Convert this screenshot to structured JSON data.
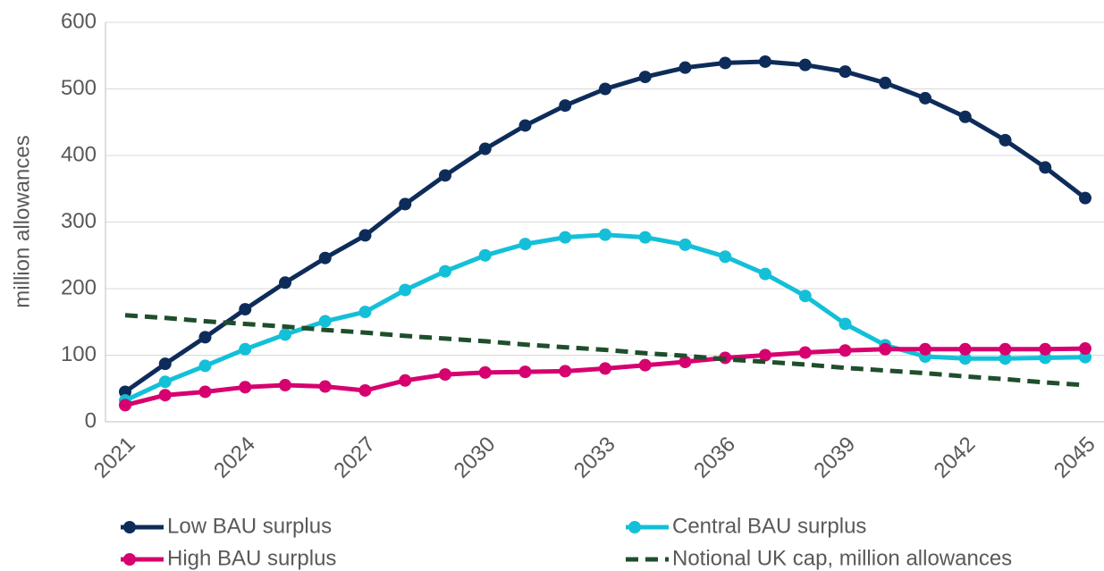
{
  "chart_data": {
    "type": "line",
    "y_label": "million allowances",
    "categories": [
      "2021",
      null,
      null,
      "2024",
      null,
      null,
      "2027",
      null,
      null,
      "2030",
      null,
      null,
      "2033",
      null,
      null,
      "2036",
      null,
      null,
      "2039",
      null,
      null,
      "2042",
      null,
      null,
      "2045"
    ],
    "series": [
      {
        "name": "Low BAU surplus",
        "color": "#0e2c5a",
        "marker": true,
        "dashed": false,
        "values": [
          45,
          87,
          127,
          169,
          209,
          246,
          280,
          327,
          370,
          410,
          445,
          475,
          500,
          518,
          532,
          539,
          541,
          536,
          526,
          509,
          486,
          458,
          423,
          382,
          336
        ]
      },
      {
        "name": "Central BAU surplus",
        "color": "#13c0d8",
        "marker": true,
        "dashed": false,
        "values": [
          32,
          60,
          84,
          109,
          131,
          151,
          165,
          198,
          226,
          250,
          267,
          277,
          281,
          277,
          266,
          248,
          222,
          189,
          147,
          115,
          98,
          95,
          95,
          96,
          97
        ]
      },
      {
        "name": "High BAU surplus",
        "color": "#d6006f",
        "marker": true,
        "dashed": false,
        "values": [
          25,
          40,
          45,
          52,
          55,
          53,
          47,
          62,
          71,
          74,
          75,
          76,
          80,
          85,
          90,
          96,
          100,
          104,
          107,
          109,
          109,
          109,
          109,
          109,
          110
        ]
      },
      {
        "name": "Notional UK cap, million allowances",
        "color": "#1f4e2c",
        "marker": false,
        "dashed": true,
        "values": [
          160,
          156,
          151,
          147,
          143,
          138,
          134,
          129,
          125,
          121,
          116,
          112,
          108,
          103,
          99,
          94,
          90,
          86,
          81,
          77,
          73,
          68,
          64,
          59,
          55
        ]
      }
    ],
    "ylim": [
      0,
      600
    ],
    "yticks": [
      0,
      100,
      200,
      300,
      400,
      500,
      600
    ],
    "grid": true
  }
}
